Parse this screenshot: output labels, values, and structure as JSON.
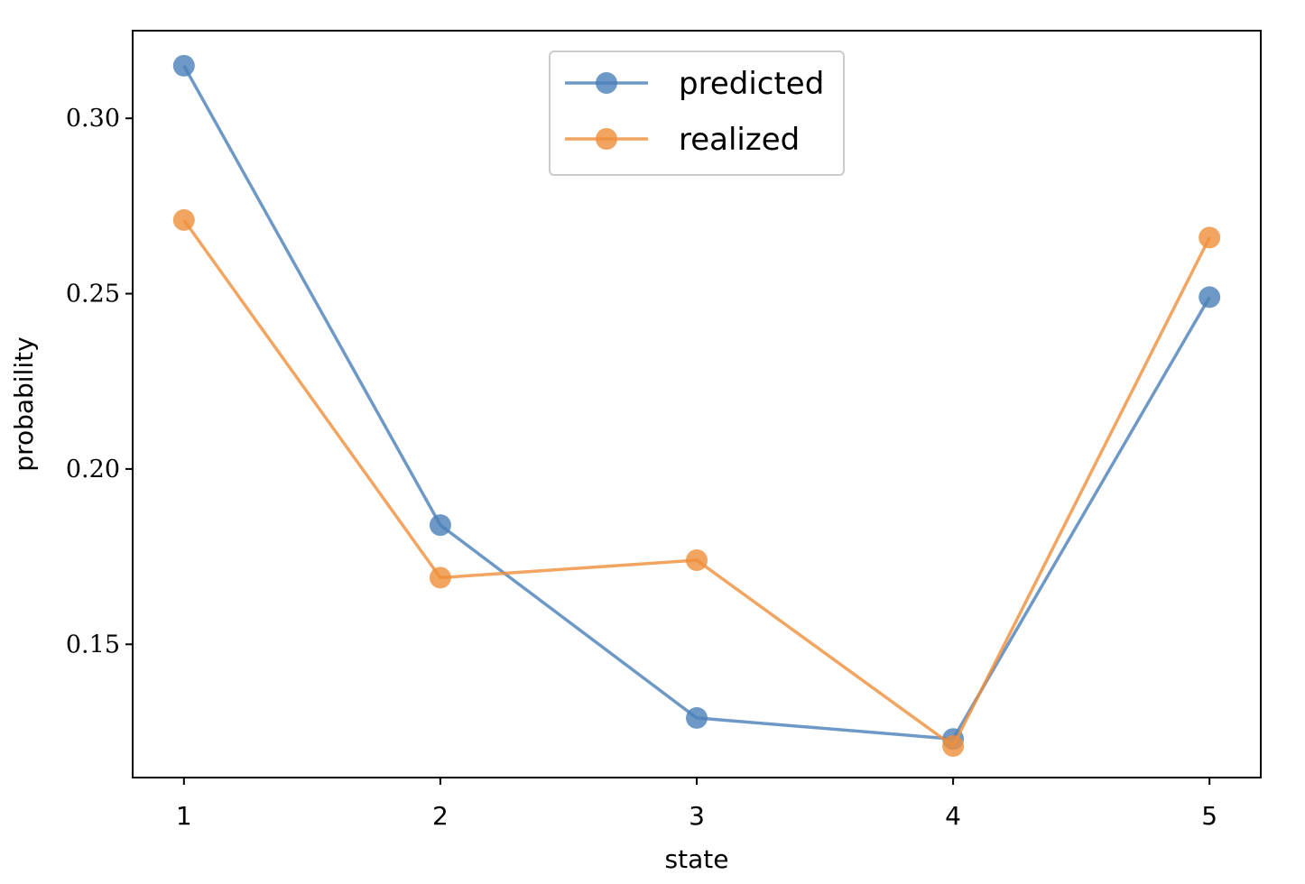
{
  "chart_data": {
    "type": "line",
    "x": [
      1,
      2,
      3,
      4,
      5
    ],
    "xticks": [
      "1",
      "2",
      "3",
      "4",
      "5"
    ],
    "xlim": [
      0.8,
      5.2
    ],
    "yticks": [
      "0.15",
      "0.20",
      "0.25",
      "0.30"
    ],
    "ylim": [
      0.112,
      0.325
    ],
    "xlabel": "state",
    "ylabel": "probability",
    "grid": false,
    "legend_position": "top-center",
    "series": [
      {
        "name": "predicted",
        "values": [
          0.315,
          0.184,
          0.129,
          0.123,
          0.249
        ],
        "color": "#4a80b8"
      },
      {
        "name": "realized",
        "values": [
          0.271,
          0.169,
          0.174,
          0.121,
          0.266
        ],
        "color": "#ef8f3a"
      }
    ]
  }
}
